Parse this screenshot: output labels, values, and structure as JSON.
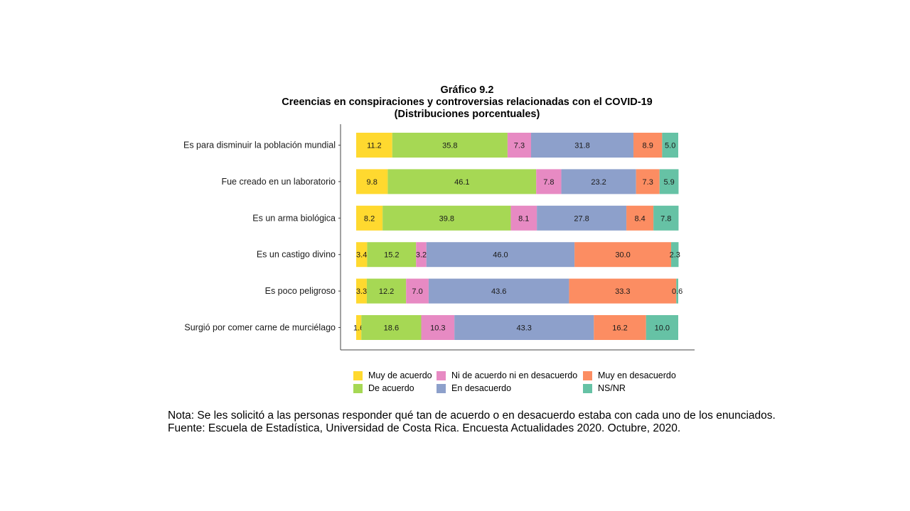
{
  "chart_data": {
    "type": "bar",
    "orientation": "horizontal",
    "stacked": true,
    "title": "Gráfico 9.2",
    "subtitle": "Creencias en conspiraciones y controversias relacionadas con el COVID-19",
    "subtitle2": "(Distribuciones porcentuales)",
    "xlabel": "",
    "ylabel": "",
    "xlim": [
      0,
      100
    ],
    "grid": false,
    "legend_position": "bottom",
    "categories": [
      "Es para disminuir la población mundial",
      "Fue creado en un laboratorio",
      "Es un arma biológica",
      "Es un castigo divino",
      "Es poco peligroso",
      "Surgió por comer carne de murciélago"
    ],
    "series": [
      {
        "name": "Muy de acuerdo",
        "color": "#FFD92F",
        "values": [
          11.2,
          9.8,
          8.2,
          3.4,
          3.3,
          1.6
        ]
      },
      {
        "name": "De acuerdo",
        "color": "#A6D854",
        "values": [
          35.8,
          46.1,
          39.8,
          15.2,
          12.2,
          18.6
        ]
      },
      {
        "name": "Ni de acuerdo ni en desacuerdo",
        "color": "#E78AC3",
        "values": [
          7.3,
          7.8,
          8.1,
          3.2,
          7.0,
          10.3
        ]
      },
      {
        "name": "En desacuerdo",
        "color": "#8DA0CB",
        "values": [
          31.8,
          23.2,
          27.8,
          46.0,
          43.6,
          43.3
        ]
      },
      {
        "name": "Muy en desacuerdo",
        "color": "#FC8D62",
        "values": [
          8.9,
          7.3,
          8.4,
          30.0,
          33.3,
          16.2
        ]
      },
      {
        "name": "NS/NR",
        "color": "#66C2A5",
        "values": [
          5.0,
          5.9,
          7.8,
          2.3,
          0.6,
          10.0
        ]
      }
    ]
  },
  "notes": {
    "nota": "Nota: Se les solicitó a las personas responder qué tan de acuerdo o en desacuerdo estaba con cada uno de los enunciados.",
    "fuente": "Fuente: Escuela de Estadística, Universidad de Costa Rica. Encuesta Actualidades 2020. Octubre, 2020."
  }
}
